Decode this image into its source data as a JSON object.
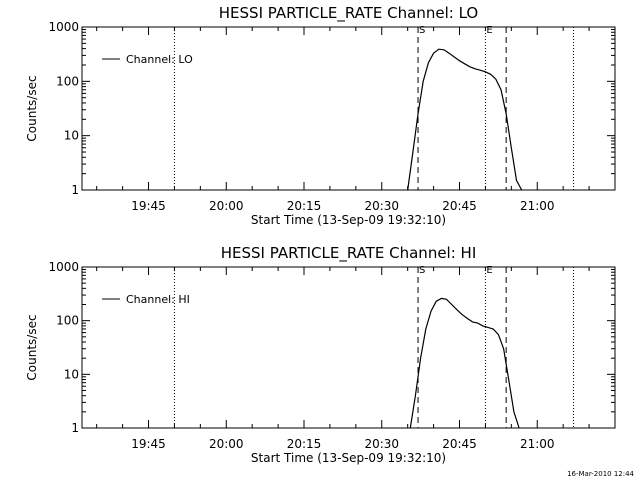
{
  "chart_data": [
    {
      "type": "line",
      "title": "HESSI PARTICLE_RATE Channel: LO",
      "xlabel": "Start Time (13-Sep-09 19:32:10)",
      "ylabel": "Counts/sec",
      "y_scale": "log",
      "ylim": [
        1,
        1000
      ],
      "y_ticks": [
        1,
        10,
        100,
        1000
      ],
      "y_tick_labels": [
        "1",
        "10",
        "100",
        "1000"
      ],
      "xlim": [
        "19:32:10",
        "21:15"
      ],
      "x_ticks": [
        "19:45",
        "20:00",
        "20:15",
        "20:30",
        "20:45",
        "21:00"
      ],
      "legend": {
        "position": "top-left",
        "entries": [
          "Channel: LO"
        ]
      },
      "markers": [
        {
          "time": "20:37",
          "label": "S",
          "style": "dashed"
        },
        {
          "time": "20:50",
          "label": "E",
          "style": "dotted"
        },
        {
          "time": "20:54",
          "label": "",
          "style": "dashed"
        }
      ],
      "guides": [
        {
          "time": "19:50",
          "style": "dotted"
        },
        {
          "time": "21:07",
          "style": "dotted"
        }
      ],
      "series": [
        {
          "name": "Channel: LO",
          "x": [
            "20:35:00",
            "20:36:00",
            "20:37:00",
            "20:38:00",
            "20:39:00",
            "20:40:00",
            "20:41:00",
            "20:42:00",
            "20:43:00",
            "20:44:00",
            "20:45:00",
            "20:46:00",
            "20:47:00",
            "20:48:00",
            "20:49:00",
            "20:50:00",
            "20:51:00",
            "20:52:00",
            "20:53:00",
            "20:54:00",
            "20:55:00",
            "20:56:00",
            "20:57:00"
          ],
          "values": [
            1,
            5,
            25,
            100,
            220,
            330,
            390,
            380,
            330,
            280,
            240,
            210,
            185,
            170,
            160,
            150,
            135,
            110,
            70,
            25,
            6,
            1.5,
            1
          ]
        }
      ]
    },
    {
      "type": "line",
      "title": "HESSI PARTICLE_RATE Channel: HI",
      "xlabel": "Start Time (13-Sep-09 19:32:10)",
      "ylabel": "Counts/sec",
      "y_scale": "log",
      "ylim": [
        1,
        1000
      ],
      "y_ticks": [
        1,
        10,
        100,
        1000
      ],
      "y_tick_labels": [
        "1",
        "10",
        "100",
        "1000"
      ],
      "xlim": [
        "19:32:10",
        "21:15"
      ],
      "x_ticks": [
        "19:45",
        "20:00",
        "20:15",
        "20:30",
        "20:45",
        "21:00"
      ],
      "legend": {
        "position": "top-left",
        "entries": [
          "Channel: HI"
        ]
      },
      "markers": [
        {
          "time": "20:37",
          "label": "S",
          "style": "dashed"
        },
        {
          "time": "20:50",
          "label": "E",
          "style": "dotted"
        },
        {
          "time": "20:54",
          "label": "",
          "style": "dashed"
        }
      ],
      "guides": [
        {
          "time": "19:50",
          "style": "dotted"
        },
        {
          "time": "21:07",
          "style": "dotted"
        }
      ],
      "series": [
        {
          "name": "Channel: HI",
          "x": [
            "20:35:30",
            "20:36:30",
            "20:37:30",
            "20:38:30",
            "20:39:30",
            "20:40:30",
            "20:41:30",
            "20:42:30",
            "20:43:30",
            "20:44:30",
            "20:45:30",
            "20:46:30",
            "20:47:30",
            "20:48:30",
            "20:49:30",
            "20:50:30",
            "20:51:30",
            "20:52:30",
            "20:53:30",
            "20:54:30",
            "20:55:30",
            "20:56:30"
          ],
          "values": [
            1,
            4,
            20,
            70,
            150,
            230,
            260,
            250,
            200,
            160,
            130,
            110,
            95,
            90,
            80,
            75,
            70,
            55,
            30,
            8,
            2,
            1
          ]
        }
      ]
    }
  ],
  "footer": {
    "timestamp": "16-Mar-2010 12:44"
  }
}
